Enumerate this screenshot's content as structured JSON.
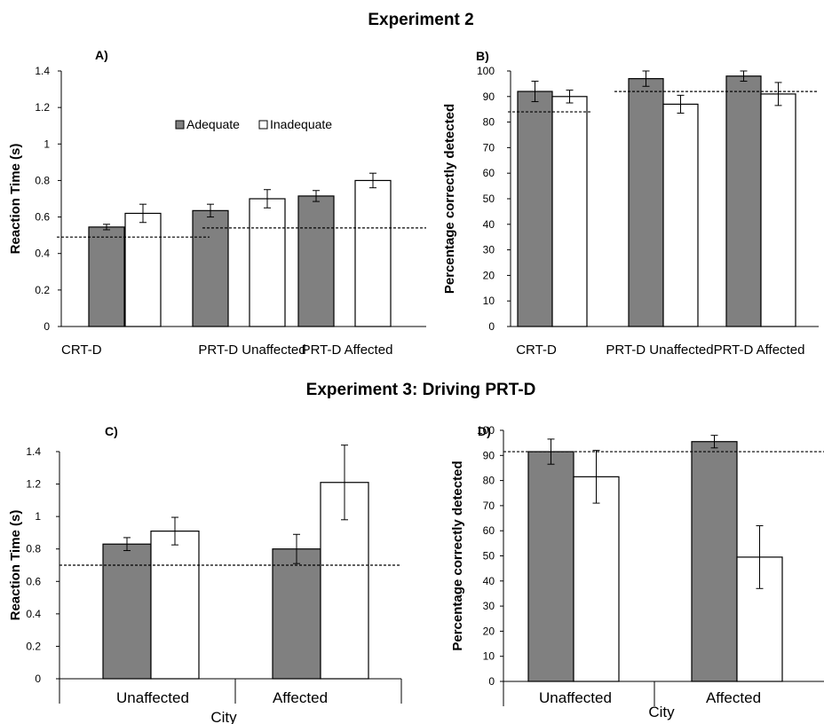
{
  "section_titles": {
    "top": "Experiment 2",
    "bottom": "Experiment 3: Driving PRT-D"
  },
  "colors": {
    "adequate": "#808080",
    "inadequate": "#ffffff",
    "edge": "#000000"
  },
  "chart_data": [
    {
      "id": "A",
      "panel_label": "A)",
      "type": "bar",
      "ylabel": "Reaction Time (s)",
      "xlabel": "",
      "categories": [
        "CRT-D",
        "PRT-D Unaffected",
        "PRT-D Affected"
      ],
      "ylim": [
        0,
        1.4
      ],
      "yticks": [
        0,
        0.2,
        0.4,
        0.6,
        0.8,
        1,
        1.2,
        1.4
      ],
      "legend": [
        "Adequate",
        "Inadequate"
      ],
      "legend_position": "upper-middle",
      "series": [
        {
          "name": "Adequate",
          "values": [
            0.545,
            0.635,
            0.715
          ],
          "errors": [
            0.015,
            0.035,
            0.03
          ]
        },
        {
          "name": "Inadequate",
          "values": [
            0.62,
            0.7,
            0.8
          ],
          "errors": [
            0.05,
            0.05,
            0.04
          ]
        }
      ],
      "reference_lines": [
        0.49,
        0.54,
        0.54
      ]
    },
    {
      "id": "B",
      "panel_label": "B)",
      "type": "bar",
      "ylabel": "Percentage correctly detected",
      "xlabel": "",
      "categories": [
        "CRT-D",
        "PRT-D Unaffected",
        "PRT-D Affected"
      ],
      "ylim": [
        0,
        100
      ],
      "yticks": [
        0,
        10,
        20,
        30,
        40,
        50,
        60,
        70,
        80,
        90,
        100
      ],
      "series": [
        {
          "name": "Adequate",
          "values": [
            92,
            97,
            98
          ],
          "errors": [
            4,
            3,
            2
          ]
        },
        {
          "name": "Inadequate",
          "values": [
            90,
            87,
            91
          ],
          "errors": [
            2.5,
            3.5,
            4.5
          ]
        }
      ],
      "reference_lines": [
        84,
        92,
        92
      ]
    },
    {
      "id": "C",
      "panel_label": "C)",
      "type": "bar",
      "ylabel": "Reaction Time (s)",
      "xlabel": "City",
      "categories": [
        "Unaffected",
        "Affected"
      ],
      "ylim": [
        0,
        1.4
      ],
      "yticks": [
        0,
        0.2,
        0.4,
        0.6,
        0.8,
        1,
        1.2,
        1.4
      ],
      "series": [
        {
          "name": "Adequate",
          "values": [
            0.83,
            0.8
          ],
          "errors": [
            0.04,
            0.09
          ]
        },
        {
          "name": "Inadequate",
          "values": [
            0.91,
            1.21
          ],
          "errors": [
            0.085,
            0.23
          ]
        }
      ],
      "reference_lines": [
        0.7
      ]
    },
    {
      "id": "D",
      "panel_label": "D)",
      "type": "bar",
      "ylabel": "Percentage correctly detected",
      "xlabel": "City",
      "categories": [
        "Unaffected",
        "Affected"
      ],
      "ylim": [
        0,
        100
      ],
      "yticks": [
        0,
        10,
        20,
        30,
        40,
        50,
        60,
        70,
        80,
        90,
        100
      ],
      "series": [
        {
          "name": "Adequate",
          "values": [
            91.5,
            95.5
          ],
          "errors": [
            5,
            2.5
          ]
        },
        {
          "name": "Inadequate",
          "values": [
            81.5,
            49.5
          ],
          "errors": [
            10.5,
            12.5
          ]
        }
      ],
      "reference_lines": [
        91.5
      ]
    }
  ]
}
